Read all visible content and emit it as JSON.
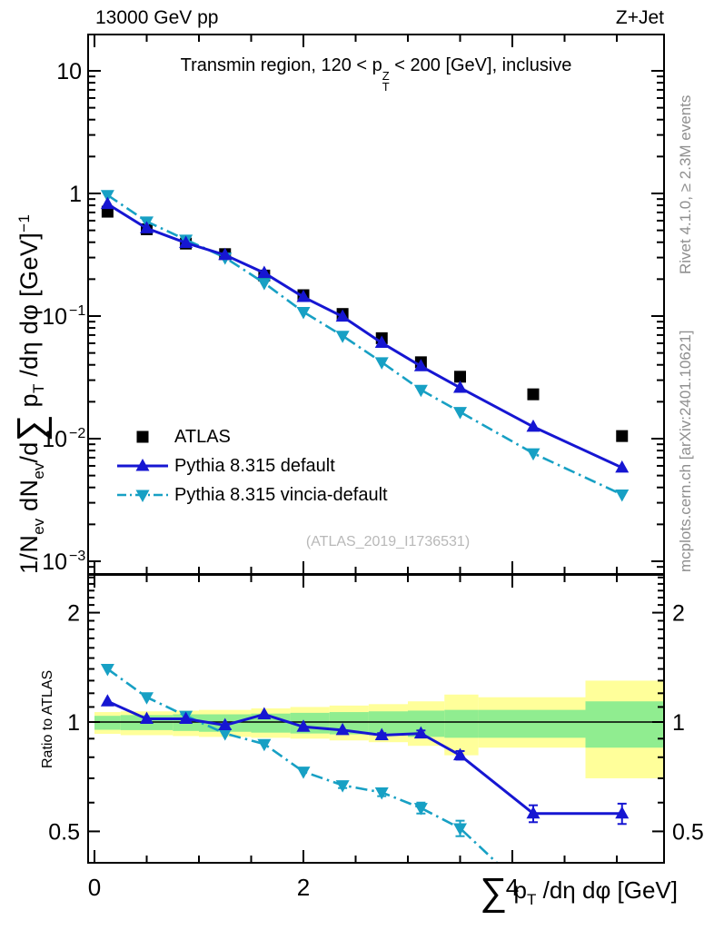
{
  "header": {
    "left": "13000 GeV pp",
    "right": "Z+Jet"
  },
  "panel_title": {
    "prefix": "Transmin region, 120 < p",
    "stack_top": "Z",
    "stack_bottom": "T",
    "suffix": " < 200 [GeV], inclusive"
  },
  "watermark": "(ATLAS_2019_I1736531)",
  "side_notes": {
    "top": "Rivet 4.1.0, ≥ 2.3M events",
    "bottom": "mcplots.cern.ch [arXiv:2401.10621]"
  },
  "axis_labels": {
    "y_main": {
      "p1": "1/N",
      "s1": "ev",
      "p2": " dN",
      "s2": "ev",
      "p3": "/d",
      "sum": "∑",
      "p4": " p",
      "s4": "T",
      "p5": " /dη dφ  [GeV]",
      "sup5": "−1"
    },
    "y_ratio": "Ratio to ATLAS",
    "x": {
      "sum": "∑",
      "p1": " p",
      "s1": "T",
      "p2": " /dη dφ [GeV]"
    }
  },
  "legend": [
    {
      "label": "ATLAS",
      "marker": "square",
      "color": "#000000",
      "line": "none"
    },
    {
      "label": "Pythia 8.315 default",
      "marker": "triangle-up",
      "color": "#1616d2",
      "line": "solid"
    },
    {
      "label": "Pythia 8.315 vincia-default",
      "marker": "triangle-down",
      "color": "#17a0c4",
      "line": "dashdot"
    }
  ],
  "colors": {
    "band_inner": "#90ed90",
    "band_outer": "#ffff9a",
    "note_gray": "#8f8f8f",
    "watermark_gray": "#b8b8b8",
    "frame": "#000000"
  },
  "chart_data": [
    {
      "type": "line",
      "title": "Transmin region, 120 < pT(Z) < 200 [GeV], inclusive",
      "xlabel": "Sum pT /deta dphi [GeV]",
      "ylabel": "1/Nev dNev/d Sum pT /deta dphi [GeV]^-1",
      "ylog": true,
      "xlim": [
        -0.06,
        5.45
      ],
      "ylim": [
        0.0008,
        19.8
      ],
      "x": [
        0.125,
        0.5,
        0.875,
        1.25,
        1.625,
        2.0,
        2.375,
        2.75,
        3.125,
        3.5,
        4.2,
        5.05
      ],
      "series": [
        {
          "name": "ATLAS",
          "marker": "square",
          "color": "#000000",
          "line": "none",
          "values": [
            0.71,
            0.51,
            0.39,
            0.32,
            0.214,
            0.148,
            0.104,
            0.066,
            0.042,
            0.032,
            0.023,
            0.0105
          ]
        },
        {
          "name": "Pythia 8.315 default",
          "marker": "triangle-up",
          "color": "#1616d2",
          "line": "solid",
          "values": [
            0.82,
            0.52,
            0.395,
            0.315,
            0.225,
            0.143,
            0.099,
            0.0605,
            0.039,
            0.026,
            0.0125,
            0.0058
          ]
        },
        {
          "name": "Pythia 8.315 vincia-default",
          "marker": "triangle-down",
          "color": "#17a0c4",
          "line": "dashdot",
          "values": [
            0.97,
            0.59,
            0.42,
            0.3,
            0.186,
            0.108,
            0.069,
            0.042,
            0.025,
            0.0165,
            0.0076,
            0.0035
          ]
        }
      ],
      "yticks": [
        {
          "v": 10,
          "base": "10",
          "exp": ""
        },
        {
          "v": 1,
          "base": "1",
          "exp": ""
        },
        {
          "v": 0.1,
          "base": "10",
          "exp": "−1"
        },
        {
          "v": 0.01,
          "base": "10",
          "exp": "−2"
        },
        {
          "v": 0.001,
          "base": "10",
          "exp": "−3"
        }
      ],
      "xticks": [
        {
          "v": 0,
          "label": "0"
        },
        {
          "v": 2,
          "label": "2"
        },
        {
          "v": 4,
          "label": "4"
        }
      ],
      "x_minor_step": 0.5,
      "legend_position": "left-middle",
      "grid": false
    },
    {
      "type": "ratio",
      "ylabel": "Ratio to ATLAS",
      "ylog": true,
      "xlim": [
        -0.06,
        5.45
      ],
      "ylim": [
        0.41,
        2.54
      ],
      "reference_line": 1,
      "x": [
        0.125,
        0.5,
        0.875,
        1.25,
        1.625,
        2.0,
        2.375,
        2.75,
        3.125,
        3.5,
        4.2,
        5.05
      ],
      "series": [
        {
          "name": "Pythia 8.315 default",
          "marker": "triangle-up",
          "color": "#1616d2",
          "line": "solid",
          "values": [
            1.14,
            1.02,
            1.02,
            0.98,
            1.05,
            0.97,
            0.95,
            0.92,
            0.93,
            0.81,
            0.56,
            0.56
          ],
          "yerr": [
            0,
            0,
            0,
            0,
            0,
            0,
            0,
            0.012,
            0.018,
            0.022,
            0.03,
            0.036
          ]
        },
        {
          "name": "Pythia 8.315 vincia-default",
          "marker": "triangle-down",
          "color": "#17a0c4",
          "line": "dashdot",
          "values": [
            1.4,
            1.17,
            1.04,
            0.93,
            0.87,
            0.73,
            0.67,
            0.64,
            0.58,
            0.51,
            0.33,
            0.33
          ],
          "yerr": [
            0,
            0,
            0,
            0,
            0,
            0,
            0.012,
            0.015,
            0.02,
            0.025,
            0,
            0
          ]
        }
      ],
      "bands": [
        {
          "x0": 0.0,
          "x1": 0.25,
          "inner": [
            0.952,
            1.04
          ],
          "outer": [
            0.928,
            1.065
          ]
        },
        {
          "x0": 0.25,
          "x1": 0.75,
          "inner": [
            0.95,
            1.045
          ],
          "outer": [
            0.92,
            1.07
          ]
        },
        {
          "x0": 0.75,
          "x1": 1.0,
          "inner": [
            0.945,
            1.05
          ],
          "outer": [
            0.915,
            1.075
          ]
        },
        {
          "x0": 1.0,
          "x1": 1.5,
          "inner": [
            0.94,
            1.05
          ],
          "outer": [
            0.91,
            1.08
          ]
        },
        {
          "x0": 1.5,
          "x1": 1.875,
          "inner": [
            0.935,
            1.055
          ],
          "outer": [
            0.905,
            1.09
          ]
        },
        {
          "x0": 1.875,
          "x1": 2.25,
          "inner": [
            0.93,
            1.06
          ],
          "outer": [
            0.9,
            1.1
          ]
        },
        {
          "x0": 2.25,
          "x1": 2.625,
          "inner": [
            0.925,
            1.065
          ],
          "outer": [
            0.89,
            1.11
          ]
        },
        {
          "x0": 2.625,
          "x1": 3.0,
          "inner": [
            0.92,
            1.07
          ],
          "outer": [
            0.88,
            1.12
          ]
        },
        {
          "x0": 3.0,
          "x1": 3.35,
          "inner": [
            0.91,
            1.075
          ],
          "outer": [
            0.86,
            1.14
          ]
        },
        {
          "x0": 3.35,
          "x1": 3.675,
          "inner": [
            0.905,
            1.08
          ],
          "outer": [
            0.81,
            1.19
          ]
        },
        {
          "x0": 3.675,
          "x1": 4.7,
          "inner": [
            0.905,
            1.08
          ],
          "outer": [
            0.85,
            1.17
          ]
        },
        {
          "x0": 4.7,
          "x1": 5.45,
          "inner": [
            0.85,
            1.14
          ],
          "outer": [
            0.7,
            1.3
          ]
        }
      ],
      "yticks": [
        {
          "v": 2,
          "label": "2"
        },
        {
          "v": 1,
          "label": "1"
        },
        {
          "v": 0.5,
          "label": "0.5"
        }
      ],
      "xticks": [
        {
          "v": 0,
          "label": "0"
        },
        {
          "v": 2,
          "label": "2"
        },
        {
          "v": 4,
          "label": "4"
        }
      ],
      "x_minor_step": 0.5
    }
  ]
}
